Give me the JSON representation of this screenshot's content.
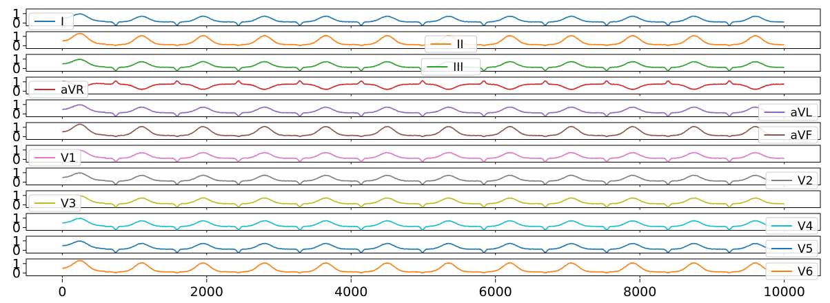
{
  "chart_data": {
    "type": "line",
    "title": "",
    "xlabel": "",
    "ylabel": "",
    "xlim": [
      -500,
      10500
    ],
    "xticks": [
      "0",
      "2000",
      "4000",
      "6000",
      "8000",
      "10000"
    ],
    "xtick_values": [
      0,
      2000,
      4000,
      6000,
      8000,
      10000
    ],
    "ytick_labels": [
      "0",
      "1"
    ],
    "ytick_values": [
      0,
      1
    ],
    "grid": false,
    "x_range": [
      0,
      10000
    ],
    "beat_times": [
      250,
      1100,
      1950,
      2800,
      3650,
      4500,
      5350,
      6200,
      7050,
      7900,
      8750,
      9600
    ],
    "series": [
      {
        "name": "I",
        "color": "#1f77b4",
        "legend": "upper-left",
        "ylim": [
          -0.3,
          1.5
        ]
      },
      {
        "name": "II",
        "color": "#ff7f0e",
        "legend": "upper-center",
        "ylim": [
          -0.3,
          1.5
        ]
      },
      {
        "name": "III",
        "color": "#2ca02c",
        "legend": "upper-center",
        "ylim": [
          -0.3,
          1.5
        ]
      },
      {
        "name": "aVR",
        "color": "#d62728",
        "legend": "upper-left",
        "ylim": [
          -0.3,
          1.5
        ]
      },
      {
        "name": "aVL",
        "color": "#9467bd",
        "legend": "upper-right",
        "ylim": [
          -0.3,
          1.5
        ]
      },
      {
        "name": "aVF",
        "color": "#8c564b",
        "legend": "upper-right",
        "ylim": [
          -0.3,
          1.5
        ]
      },
      {
        "name": "V1",
        "color": "#e377c2",
        "legend": "upper-left",
        "ylim": [
          -0.3,
          1.5
        ]
      },
      {
        "name": "V2",
        "color": "#7f7f7f",
        "legend": "upper-right",
        "ylim": [
          -0.3,
          1.5
        ]
      },
      {
        "name": "V3",
        "color": "#bcbd22",
        "legend": "upper-left",
        "ylim": [
          -0.3,
          1.5
        ]
      },
      {
        "name": "V4",
        "color": "#17becf",
        "legend": "upper-right",
        "ylim": [
          -0.3,
          1.5
        ]
      },
      {
        "name": "V5",
        "color": "#1f77b4",
        "legend": "upper-right",
        "ylim": [
          -0.3,
          1.5
        ]
      },
      {
        "name": "V6",
        "color": "#ff7f0e",
        "legend": "upper-right",
        "ylim": [
          -0.3,
          1.5
        ]
      }
    ]
  }
}
